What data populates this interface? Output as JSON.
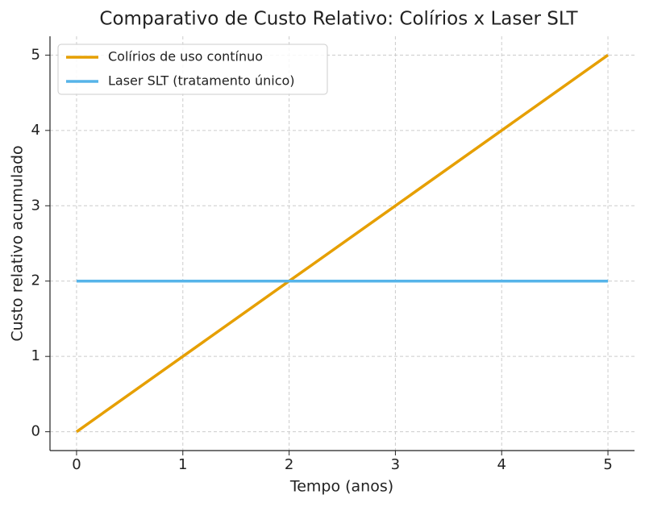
{
  "chart_data": {
    "type": "line",
    "title": "Comparativo de Custo Relativo: Colírios x Laser SLT",
    "x_label": "Tempo (anos)",
    "y_label": "Custo relativo acumulado",
    "x": [
      0,
      1,
      2,
      3,
      4,
      5
    ],
    "series": [
      {
        "name": "Colírios de uso contínuo",
        "color": "#E69F00",
        "values": [
          0,
          1,
          2,
          3,
          4,
          5
        ]
      },
      {
        "name": "Laser SLT (tratamento único)",
        "color": "#56B4E9",
        "values": [
          2,
          2,
          2,
          2,
          2,
          2
        ]
      }
    ],
    "xlim": [
      -0.25,
      5.25
    ],
    "ylim": [
      -0.25,
      5.25
    ],
    "xticks": [
      0,
      1,
      2,
      3,
      4,
      5
    ],
    "yticks": [
      0,
      1,
      2,
      3,
      4,
      5
    ],
    "grid": true,
    "legend": "upper-left"
  }
}
